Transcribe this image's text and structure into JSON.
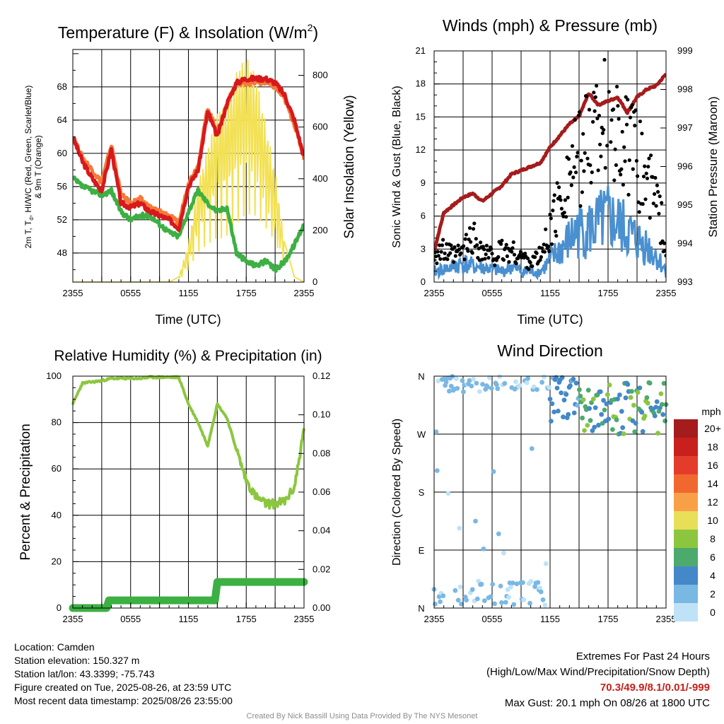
{
  "panels": {
    "temperature": {
      "title": "Temperature (F) & Insolation (W/m",
      "title_sup": "2",
      "title_end": ")",
      "ylabel_left_1": "2m T, T",
      "ylabel_left_sub": "d",
      "ylabel_left_2": ", HI/WC (Red, Green, Scarlet/Blue)",
      "ylabel_left_3": "& 9m T (Orange)",
      "ylabel_right": "Solar Insolation (Yellow)",
      "xlabel": "Time (UTC)",
      "xticks": [
        "2355",
        "0555",
        "1155",
        "1755",
        "2355"
      ],
      "yticks_left": [
        "48",
        "52",
        "56",
        "60",
        "64",
        "68"
      ],
      "yticks_right": [
        "0",
        "200",
        "400",
        "600",
        "800"
      ],
      "colors": {
        "temp": "#d7191c",
        "temp9m": "#f47a3a",
        "dew": "#3cb043",
        "solar": "#f2e155"
      }
    },
    "winds": {
      "title": "Winds (mph) & Pressure (mb)",
      "ylabel_left": "Sonic Wind & Gust (Blue, Black)",
      "ylabel_right": "Station Pressure (Maroon)",
      "xlabel": "Time (UTC)",
      "xticks": [
        "2355",
        "0555",
        "1155",
        "1755",
        "2355"
      ],
      "yticks_left": [
        "0",
        "3",
        "6",
        "9",
        "12",
        "15",
        "18",
        "21"
      ],
      "yticks_right": [
        "993",
        "994",
        "995",
        "996",
        "997",
        "998",
        "999"
      ],
      "colors": {
        "wind": "#4a90d0",
        "gust": "#000000",
        "pressure": "#a51c1c"
      }
    },
    "humidity": {
      "title": "Relative Humidity (%) & Precipitation (in)",
      "ylabel_left": "Percent & Precipitation",
      "xticks": [
        "2355",
        "0555",
        "1155",
        "1755",
        "2355"
      ],
      "yticks_left": [
        "0",
        "20",
        "40",
        "60",
        "80",
        "100"
      ],
      "yticks_right": [
        "0.00",
        "0.02",
        "0.04",
        "0.06",
        "0.08",
        "0.10",
        "0.12"
      ],
      "colors": {
        "rh": "#8cc63f",
        "precip": "#3cb043"
      }
    },
    "direction": {
      "title": "Wind Direction",
      "ylabel_left": "Direction (Colored By Speed)",
      "xticks": [
        "2355",
        "0555",
        "1155",
        "1755",
        "2355"
      ],
      "yticks_left": [
        "N",
        "E",
        "S",
        "W",
        "N"
      ],
      "legend_title": "mph",
      "legend_labels": [
        "20+",
        "18",
        "16",
        "14",
        "12",
        "10",
        "8",
        "6",
        "4",
        "2",
        "0"
      ],
      "legend_colors": [
        "#a51c1c",
        "#c8201c",
        "#e43c2c",
        "#f06830",
        "#f8a048",
        "#e8df58",
        "#8cc63f",
        "#4caa6c",
        "#4488c8",
        "#7ab8e4",
        "#bfe2f6"
      ]
    }
  },
  "chart_data": [
    {
      "type": "line",
      "title": "Temperature (F) & Insolation (W/m2)",
      "xlabel": "Time (UTC)",
      "ylabel": "2m T, Td, HI/WC (Red, Green, Scarlet/Blue) & 9m T (Orange)",
      "y2label": "Solar Insolation (Yellow)",
      "xlim": [
        0,
        24
      ],
      "ylim": [
        44.5,
        72.5
      ],
      "y2lim": [
        0,
        900
      ],
      "x": [
        0,
        1,
        2,
        3,
        4,
        5,
        6,
        7,
        8,
        9,
        10,
        11,
        12,
        13,
        14,
        15,
        16,
        17,
        18,
        19,
        20,
        21,
        22,
        23,
        24
      ],
      "series": [
        {
          "name": "2m T",
          "axis": "left",
          "values": [
            62,
            59,
            57,
            55.5,
            60.5,
            54,
            53.5,
            54,
            53,
            52.5,
            52,
            51,
            56,
            58,
            65,
            62,
            66,
            68.5,
            69,
            69,
            69,
            68.5,
            67,
            64,
            59.5
          ]
        },
        {
          "name": "9m T",
          "axis": "left",
          "values": [
            62,
            59.5,
            58,
            56.5,
            61,
            55,
            54,
            54.5,
            53.5,
            53,
            52.5,
            51.5,
            56.5,
            58.5,
            65.5,
            62.5,
            66,
            68.5,
            68.5,
            68.5,
            68.5,
            68,
            66.5,
            63.5,
            59.5
          ]
        },
        {
          "name": "Td",
          "axis": "left",
          "values": [
            57,
            56,
            55.5,
            55,
            55.5,
            53,
            52,
            52.5,
            52.5,
            51.5,
            50.5,
            50,
            53,
            55.5,
            54,
            53,
            53.5,
            48,
            47,
            46.5,
            47,
            46,
            47,
            49,
            51.5
          ]
        },
        {
          "name": "Solar Insolation",
          "axis": "right",
          "values": [
            0,
            0,
            0,
            0,
            0,
            0,
            0,
            0,
            0,
            0,
            0,
            20,
            150,
            380,
            520,
            660,
            700,
            820,
            880,
            800,
            620,
            430,
            150,
            20,
            0
          ]
        }
      ]
    },
    {
      "type": "line",
      "title": "Winds (mph) & Pressure (mb)",
      "xlabel": "Time (UTC)",
      "ylabel": "Sonic Wind & Gust (Blue, Black)",
      "y2label": "Station Pressure (Maroon)",
      "xlim": [
        0,
        24
      ],
      "ylim": [
        0,
        21
      ],
      "y2lim": [
        993,
        999
      ],
      "x": [
        0,
        1,
        2,
        3,
        4,
        5,
        6,
        7,
        8,
        9,
        10,
        11,
        12,
        13,
        14,
        15,
        16,
        17,
        18,
        19,
        20,
        21,
        22,
        23,
        24
      ],
      "series": [
        {
          "name": "Sonic Wind",
          "axis": "left",
          "values": [
            1,
            1.2,
            1.5,
            1.8,
            1.5,
            1.4,
            1.2,
            1,
            1.5,
            1,
            1,
            1,
            2,
            3,
            4,
            5,
            5,
            5.5,
            6,
            5.5,
            4.8,
            4,
            3.5,
            2.5,
            1
          ]
        },
        {
          "name": "Gust",
          "axis": "left",
          "values": [
            3,
            3,
            2.5,
            3,
            4.5,
            3,
            2.5,
            3,
            3,
            2.5,
            2,
            2.5,
            5,
            8,
            11,
            12,
            14,
            16,
            19,
            15,
            13,
            12,
            10,
            8,
            3.5
          ]
        },
        {
          "name": "Station Pressure",
          "axis": "right",
          "values": [
            993.8,
            994.8,
            995,
            995.2,
            995.3,
            995.1,
            995.3,
            995.5,
            995.8,
            995.9,
            996,
            996.1,
            996.5,
            996.8,
            997.1,
            997.3,
            997.9,
            997.6,
            997.7,
            997.8,
            997.4,
            997.8,
            998,
            998.1,
            998.4
          ]
        }
      ]
    },
    {
      "type": "line",
      "title": "Relative Humidity (%) & Precipitation (in)",
      "ylabel": "Percent & Precipitation",
      "xlim": [
        0,
        24
      ],
      "ylim": [
        0,
        100
      ],
      "y2lim": [
        0,
        0.12
      ],
      "x": [
        0,
        1,
        2,
        3,
        4,
        5,
        6,
        7,
        8,
        9,
        10,
        11,
        12,
        13,
        14,
        15,
        16,
        17,
        18,
        19,
        20,
        21,
        22,
        23,
        24
      ],
      "series": [
        {
          "name": "Relative Humidity",
          "axis": "left",
          "values": [
            88,
            97,
            97.5,
            98,
            99,
            99,
            99,
            99,
            99.5,
            99.5,
            99.5,
            99.5,
            88,
            80,
            70,
            88,
            82,
            68,
            55,
            48,
            45,
            45,
            46,
            52,
            77
          ]
        },
        {
          "name": "Precipitation",
          "axis": "right",
          "values": [
            0,
            0,
            0,
            0,
            0.005,
            0.005,
            0.005,
            0.005,
            0.005,
            0.005,
            0.005,
            0.005,
            0.005,
            0.005,
            0.005,
            0.014,
            0.014,
            0.014,
            0.014,
            0.014,
            0.014,
            0.014,
            0.014,
            0.014,
            0.014
          ]
        }
      ]
    },
    {
      "type": "scatter",
      "title": "Wind Direction",
      "ylabel": "Direction (Colored By Speed)",
      "xlim": [
        0,
        24
      ],
      "ylim": [
        0,
        360
      ],
      "x": [
        0,
        1,
        2,
        3,
        4,
        5,
        6,
        7,
        8,
        9,
        10,
        11,
        12,
        13,
        14,
        15,
        16,
        17,
        18,
        19,
        20,
        21,
        22,
        23,
        24
      ],
      "series": [
        {
          "name": "Direction",
          "values": [
            350,
            20,
            340,
            15,
            300,
            10,
            340,
            20,
            350,
            15,
            330,
            350,
            320,
            300,
            310,
            330,
            320,
            330,
            320,
            310,
            300,
            320,
            330,
            340,
            350
          ]
        }
      ]
    }
  ],
  "info": {
    "location": "Location: Camden",
    "elevation": "Station elevation: 150.327 m",
    "latlon": "Station lat/lon: 43.3399; -75.743",
    "created": "Figure created on Tue, 2025-08-26, at 23:59 UTC",
    "recent": "Most recent data timestamp: 2025/08/26 23:55:00"
  },
  "extremes": {
    "heading": "Extremes For Past 24 Hours",
    "subheading": "(High/Low/Max Wind/Precipitation/Snow Depth)",
    "values": "70.3/49.9/8.1/0.01/-999",
    "gust": "Max Gust: 20.1 mph On 08/26 at 1800 UTC"
  },
  "credit": "Created By Nick Bassill Using Data Provided By The NYS Mesonet"
}
